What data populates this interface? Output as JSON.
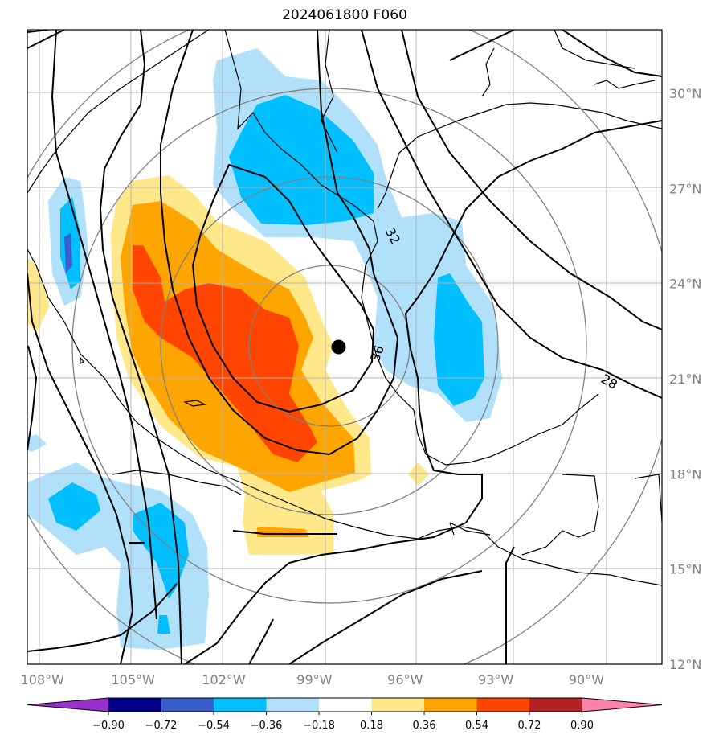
{
  "title": "2024061800 F060",
  "map": {
    "lon_range": [
      -108.5,
      -87.5
    ],
    "lat_range": [
      12,
      32
    ],
    "lon_ticks": [
      -108,
      -105,
      -102,
      -99,
      -96,
      -93,
      -90
    ],
    "lon_tick_labels": [
      "108°W",
      "105°W",
      "102°W",
      "99°W",
      "96°W",
      "93°W",
      "90°W"
    ],
    "lat_ticks": [
      12,
      15,
      18,
      21,
      24,
      27,
      30
    ],
    "lat_tick_labels": [
      "12°N",
      "15°N",
      "18°N",
      "21°N",
      "24°N",
      "27°N",
      "30°N"
    ],
    "grid": true,
    "center_marker": {
      "lon": -98.2,
      "lat": 22.0
    },
    "range_rings": "concentric gray circles around center",
    "contour_labels": [
      "32",
      "36",
      "28"
    ]
  },
  "colorbar": {
    "tick_labels": [
      "−0.90",
      "−0.72",
      "−0.54",
      "−0.36",
      "−0.18",
      "0.18",
      "0.36",
      "0.54",
      "0.72",
      "0.90"
    ],
    "colors": [
      "#9932cc",
      "#00008b",
      "#3a5fcd",
      "#00bfff",
      "#b0e0fa",
      "#ffffff",
      "#ffe88a",
      "#ffa500",
      "#ff4500",
      "#b22222",
      "#ff82ab"
    ],
    "extend": "both"
  }
}
